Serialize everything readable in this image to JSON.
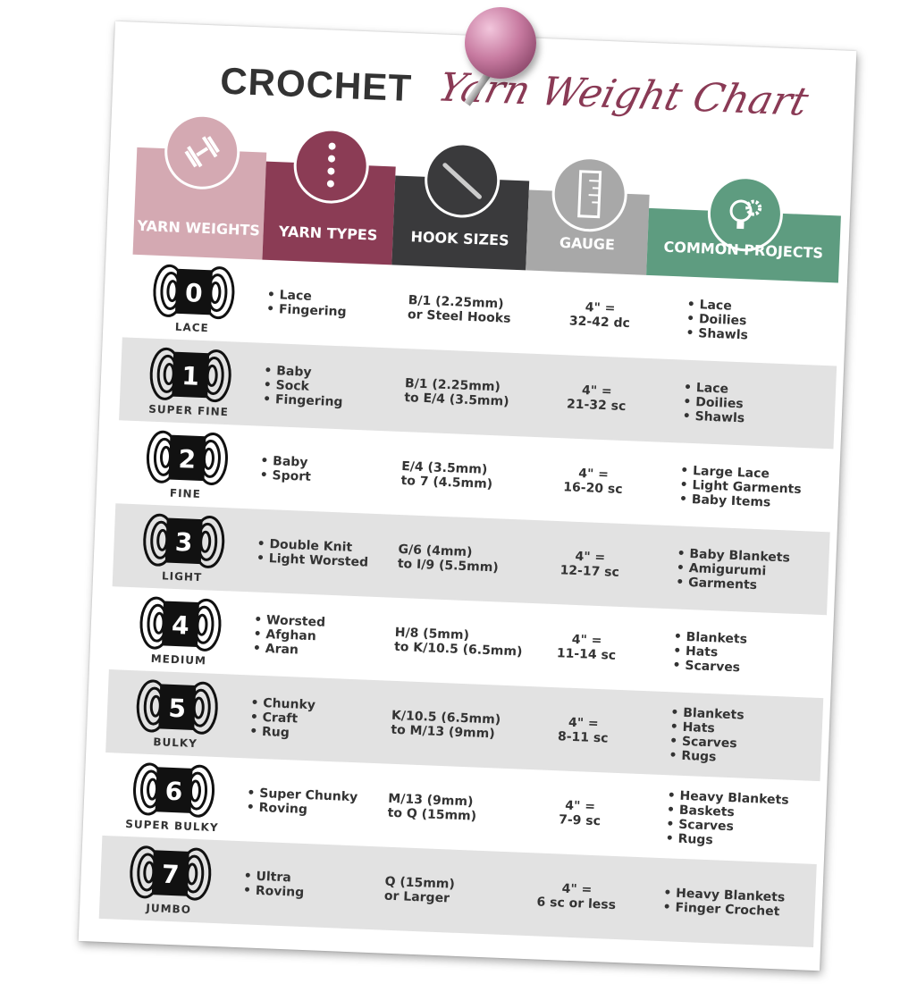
{
  "title": {
    "part1": "CROCHET",
    "part2": "Yarn Weight Chart"
  },
  "colors": {
    "weights": "#d4a9b2",
    "types": "#8b3c55",
    "hooks": "#3a3a3c",
    "gauge": "#a8a8a8",
    "projects": "#5e9c80",
    "row_alt": "#e2e2e2"
  },
  "headers": [
    {
      "label": "YARN WEIGHTS",
      "icon": "dumbbell-icon"
    },
    {
      "label": "YARN TYPES",
      "icon": "dots-icon"
    },
    {
      "label": "HOOK SIZES",
      "icon": "crochet-hook-icon"
    },
    {
      "label": "GAUGE",
      "icon": "ruler-icon"
    },
    {
      "label": "COMMON PROJECTS",
      "icon": "lightbulb-gear-icon"
    }
  ],
  "rows": [
    {
      "number": "0",
      "name": "LACE",
      "types": [
        "Lace",
        "Fingering"
      ],
      "hook": [
        "B/1 (2.25mm)",
        "or Steel Hooks"
      ],
      "gauge": [
        "4\" =",
        "32-42 dc"
      ],
      "projects": [
        "Lace",
        "Doilies",
        "Shawls"
      ]
    },
    {
      "number": "1",
      "name": "SUPER FINE",
      "types": [
        "Baby",
        "Sock",
        "Fingering"
      ],
      "hook": [
        "B/1 (2.25mm)",
        "to E/4 (3.5mm)"
      ],
      "gauge": [
        "4\" =",
        "21-32 sc"
      ],
      "projects": [
        "Lace",
        "Doilies",
        "Shawls"
      ]
    },
    {
      "number": "2",
      "name": "FINE",
      "types": [
        "Baby",
        "Sport"
      ],
      "hook": [
        "E/4 (3.5mm)",
        "to 7 (4.5mm)"
      ],
      "gauge": [
        "4\" =",
        "16-20 sc"
      ],
      "projects": [
        "Large Lace",
        "Light Garments",
        "Baby Items"
      ]
    },
    {
      "number": "3",
      "name": "LIGHT",
      "types": [
        "Double Knit",
        "Light Worsted"
      ],
      "hook": [
        "G/6 (4mm)",
        "to I/9 (5.5mm)"
      ],
      "gauge": [
        "4\" =",
        "12-17 sc"
      ],
      "projects": [
        "Baby Blankets",
        "Amigurumi",
        "Garments"
      ]
    },
    {
      "number": "4",
      "name": "MEDIUM",
      "types": [
        "Worsted",
        "Afghan",
        "Aran"
      ],
      "hook": [
        "H/8 (5mm)",
        "to K/10.5 (6.5mm)"
      ],
      "gauge": [
        "4\" =",
        "11-14 sc"
      ],
      "projects": [
        "Blankets",
        "Hats",
        "Scarves"
      ]
    },
    {
      "number": "5",
      "name": "BULKY",
      "types": [
        "Chunky",
        "Craft",
        "Rug"
      ],
      "hook": [
        "K/10.5 (6.5mm)",
        "to M/13 (9mm)"
      ],
      "gauge": [
        "4\" =",
        "8-11 sc"
      ],
      "projects": [
        "Blankets",
        "Hats",
        "Scarves",
        "Rugs"
      ]
    },
    {
      "number": "6",
      "name": "SUPER BULKY",
      "types": [
        "Super Chunky",
        "Roving"
      ],
      "hook": [
        "M/13 (9mm)",
        "to Q (15mm)"
      ],
      "gauge": [
        "4\" =",
        "7-9 sc"
      ],
      "projects": [
        "Heavy Blankets",
        "Baskets",
        "Scarves",
        "Rugs"
      ]
    },
    {
      "number": "7",
      "name": "JUMBO",
      "types": [
        "Ultra",
        "Roving"
      ],
      "hook": [
        "Q (15mm)",
        "or Larger"
      ],
      "gauge": [
        "4\" =",
        "6 sc or less"
      ],
      "projects": [
        "Heavy Blankets",
        "Finger Crochet"
      ]
    }
  ]
}
